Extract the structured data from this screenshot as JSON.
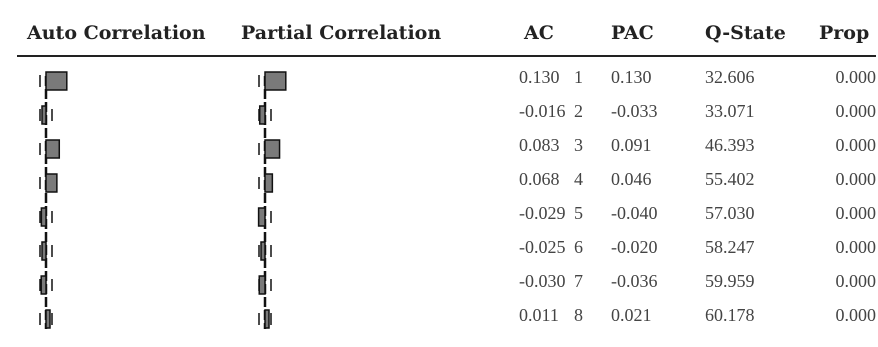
{
  "headers": {
    "auto": "Auto Correlation",
    "partial": "Partial Correlation",
    "ac": "AC",
    "pac": "PAC",
    "q": "Q-State",
    "prop": "Prop"
  },
  "rows": [
    {
      "lag": "1",
      "ac": "0.130",
      "pac": "0.130",
      "q": "32.606",
      "prop": "0.000"
    },
    {
      "lag": "2",
      "ac": "-0.016",
      "pac": "-0.033",
      "q": "33.071",
      "prop": "0.000"
    },
    {
      "lag": "3",
      "ac": "0.083",
      "pac": "0.091",
      "q": "46.393",
      "prop": "0.000"
    },
    {
      "lag": "4",
      "ac": "0.068",
      "pac": "0.046",
      "q": "55.402",
      "prop": "0.000"
    },
    {
      "lag": "5",
      "ac": "-0.029",
      "pac": "-0.040",
      "q": "57.030",
      "prop": "0.000"
    },
    {
      "lag": "6",
      "ac": "-0.025",
      "pac": "-0.020",
      "q": "58.247",
      "prop": "0.000"
    },
    {
      "lag": "7",
      "ac": "-0.030",
      "pac": "-0.036",
      "q": "59.959",
      "prop": "0.000"
    },
    {
      "lag": "8",
      "ac": "0.011",
      "pac": "0.021",
      "q": "60.178",
      "prop": "0.000"
    }
  ],
  "colors": {
    "bar": "#7a7a7a",
    "bar_border": "#111111",
    "line": "#111111"
  }
}
